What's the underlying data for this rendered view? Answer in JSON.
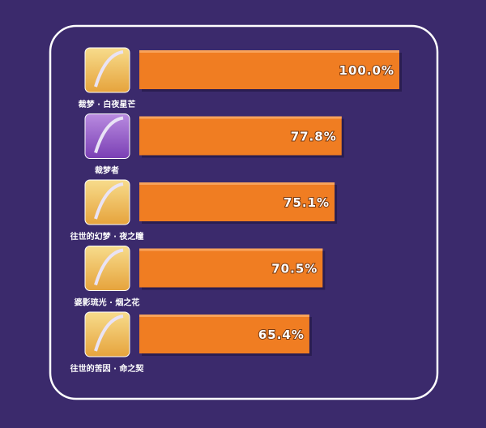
{
  "chart_data": {
    "type": "bar",
    "categories": [
      "裁梦 · 白夜星芒",
      "裁梦者",
      "往世的幻梦 · 夜之瞳",
      "婆影琉光 · 烟之花",
      "往世的苦因 · 命之契"
    ],
    "values": [
      100.0,
      77.8,
      75.1,
      70.5,
      65.4
    ],
    "value_labels": [
      "100.0%",
      "77.8%",
      "75.1%",
      "70.5%",
      "65.4%"
    ],
    "color": "#f07d22"
  }
}
